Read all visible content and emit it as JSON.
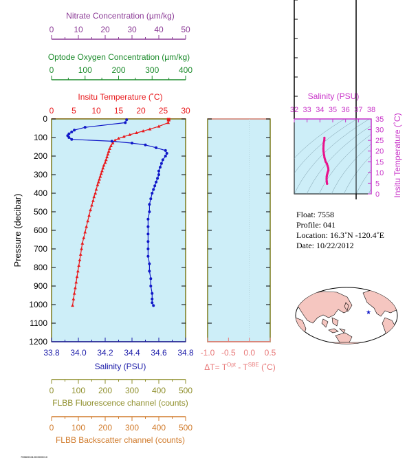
{
  "colors": {
    "nitrate": "#8b3a96",
    "oxygen": "#1a8a2a",
    "temperature": "#e8191c",
    "salinity": "#1018c8",
    "salinity_axis": "#1a1aa8",
    "panel_bg": "#cdeef8",
    "axis_olive": "#7a7a1a",
    "fluorescence": "#8e8e2a",
    "backscatter": "#d07a2a",
    "delta": "#e87878",
    "inset_salinity": "#c832c8",
    "ts_curve": "#e8148c",
    "map_land": "#f5c6c0",
    "map_ocean": "#ffffff"
  },
  "chart_data": [
    {
      "type": "line",
      "title": "",
      "ylabel": "Pressure (decibar)",
      "ylim": [
        1200,
        0
      ],
      "yticks": [
        "0",
        "100",
        "200",
        "300",
        "400",
        "500",
        "600",
        "700",
        "800",
        "900",
        "1000",
        "1100",
        "1200"
      ],
      "axes": {
        "nitrate": {
          "label": "Nitrate Concentration (µm/kg)",
          "range": [
            0,
            50
          ],
          "ticks": [
            "0",
            "10",
            "20",
            "30",
            "40",
            "50"
          ]
        },
        "oxygen": {
          "label": "Optode Oxygen Concentration (µm/kg)",
          "range": [
            0,
            400
          ],
          "ticks": [
            "0",
            "100",
            "200",
            "300",
            "400"
          ]
        },
        "temperature": {
          "label": "Insitu Temperature (˚C)",
          "range": [
            0,
            30
          ],
          "ticks": [
            "0",
            "5",
            "10",
            "15",
            "20",
            "25",
            "30"
          ]
        },
        "salinity": {
          "label": "Salinity (PSU)",
          "range": [
            33.8,
            34.8
          ],
          "ticks": [
            "33.8",
            "34.0",
            "34.2",
            "34.4",
            "34.6",
            "34.8"
          ]
        },
        "fluorescence": {
          "label": "FLBB Fluorescence channel (counts)",
          "range": [
            0,
            500
          ],
          "ticks": [
            "0",
            "100",
            "200",
            "300",
            "400",
            "500"
          ]
        },
        "backscatter": {
          "label": "FLBB Backscatter channel (counts)",
          "range": [
            0,
            500
          ],
          "ticks": [
            "0",
            "100",
            "200",
            "300",
            "400",
            "500"
          ]
        }
      },
      "series": [
        {
          "name": "Insitu Temperature",
          "x": [
            26.2,
            26.1,
            24.0,
            22.0,
            20.5,
            19.0,
            17.5,
            16.2,
            15.0,
            14.2,
            13.7,
            13.3,
            13.0,
            12.8,
            12.6,
            12.4,
            12.2,
            12.0,
            11.7,
            11.5,
            11.3,
            11.1,
            10.9,
            10.7,
            10.5,
            10.3,
            10.0,
            9.8,
            9.5,
            9.3,
            9.0,
            8.7,
            8.4,
            8.1,
            7.8,
            7.5,
            7.2,
            6.9,
            6.7,
            6.5,
            6.3,
            6.1,
            5.9,
            5.7,
            5.5,
            5.3,
            5.1,
            4.9,
            4.7
          ],
          "y": [
            4,
            20,
            40,
            55,
            65,
            75,
            85,
            95,
            105,
            115,
            130,
            145,
            160,
            175,
            190,
            205,
            220,
            235,
            250,
            265,
            280,
            295,
            310,
            325,
            340,
            355,
            380,
            400,
            420,
            440,
            465,
            490,
            520,
            550,
            580,
            610,
            640,
            670,
            700,
            730,
            760,
            790,
            820,
            850,
            880,
            910,
            940,
            970,
            1005
          ]
        },
        {
          "name": "Salinity",
          "x": [
            34.36,
            34.35,
            34.05,
            33.97,
            33.95,
            33.93,
            33.92,
            33.93,
            33.95,
            34.25,
            34.4,
            34.5,
            34.58,
            34.65,
            34.66,
            34.65,
            34.63,
            34.62,
            34.61,
            34.6,
            34.6,
            34.59,
            34.58,
            34.57,
            34.56,
            34.55,
            34.54,
            34.53,
            34.53,
            34.52,
            34.52,
            34.52,
            34.52,
            34.52,
            34.52,
            34.53,
            34.53,
            34.54,
            34.54,
            34.55,
            34.55,
            34.55,
            34.56
          ],
          "y": [
            4,
            20,
            45,
            60,
            70,
            80,
            90,
            100,
            110,
            120,
            130,
            140,
            155,
            170,
            185,
            200,
            220,
            240,
            260,
            280,
            300,
            320,
            340,
            360,
            380,
            400,
            430,
            460,
            500,
            540,
            580,
            620,
            660,
            700,
            740,
            780,
            820,
            860,
            900,
            940,
            970,
            990,
            1005
          ]
        }
      ]
    },
    {
      "type": "line",
      "xlabel": "ΔT= T^Opt - T^SBE (˚C)",
      "xlabel_main": "ΔT= T",
      "xlabel_sup1": "Opt",
      "xlabel_mid": " - T",
      "xlabel_sup2": "SBE",
      "xlabel_end": " (˚C)",
      "xlim": [
        -1.0,
        0.5
      ],
      "xticks": [
        "-1.0",
        "-0.5",
        "0.0",
        "0.5"
      ],
      "series": []
    },
    {
      "type": "line",
      "xlabel": "Salinity (PSU)",
      "ylabel": "Insitu Temperature (˚C)",
      "xlim": [
        32,
        38
      ],
      "ylim": [
        0,
        35
      ],
      "xticks": [
        "32",
        "33",
        "34",
        "35",
        "36",
        "37",
        "38"
      ],
      "yticks": [
        "0",
        "5",
        "10",
        "15",
        "20",
        "25",
        "30",
        "35"
      ],
      "series": [
        {
          "name": "T-S",
          "x": [
            34.35,
            34.34,
            34.3,
            34.28,
            34.27,
            34.28,
            34.3,
            34.33,
            34.35,
            34.4,
            34.45,
            34.55,
            34.6,
            34.65,
            34.66,
            34.63,
            34.6,
            34.58,
            34.56,
            34.54,
            34.53,
            34.52,
            34.53,
            34.55,
            34.56
          ],
          "y": [
            26.2,
            25.0,
            24.0,
            22.5,
            21.0,
            20.0,
            19.0,
            18.0,
            17.0,
            16.0,
            15.0,
            14.0,
            13.0,
            12.0,
            11.0,
            10.5,
            10.0,
            9.5,
            9.0,
            8.5,
            8.0,
            7.0,
            6.0,
            5.0,
            4.7
          ]
        }
      ]
    }
  ],
  "info": {
    "float": "Float:  7558",
    "profile": "Profile:  041",
    "location": "Location:  16.3˚N  -120.4˚E",
    "date": "Date:  10/22/2012"
  },
  "footer_code": "7558/0041/0030/0010"
}
